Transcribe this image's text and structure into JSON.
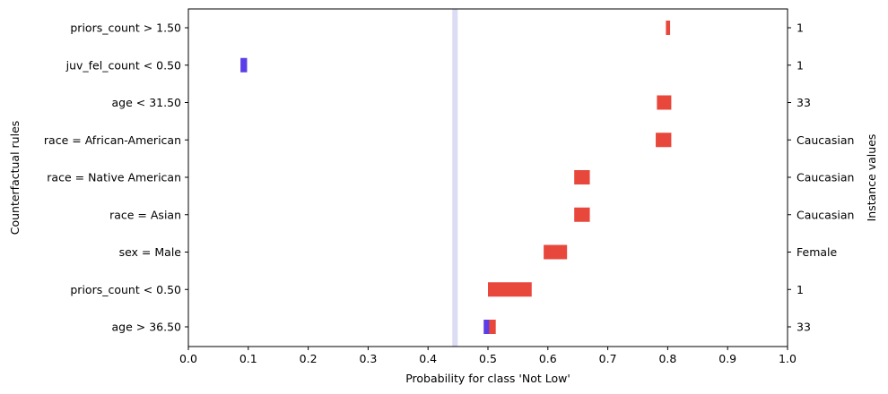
{
  "chart_data": {
    "type": "bar",
    "orientation": "horizontal",
    "xlabel": "Probability for class 'Not Low'",
    "ylabel": "Counterfactual rules",
    "y2label": "Instance values",
    "xlim": [
      0.0,
      1.0
    ],
    "xticks": [
      "0.0",
      "0.1",
      "0.2",
      "0.3",
      "0.4",
      "0.5",
      "0.6",
      "0.7",
      "0.8",
      "0.9",
      "1.0"
    ],
    "baseline": 0.445,
    "grid": false,
    "rules": [
      {
        "label": "priors_count > 1.50",
        "instance": "1",
        "low": 0.797,
        "high": 0.804,
        "color": "#e8473b"
      },
      {
        "label": "juv_fel_count < 0.50",
        "instance": "1",
        "low": 0.087,
        "high": 0.098,
        "color": "#5a3ee8"
      },
      {
        "label": "age < 31.50",
        "instance": "33",
        "low": 0.782,
        "high": 0.806,
        "color": "#e8473b"
      },
      {
        "label": "race = African-American",
        "instance": "Caucasian",
        "low": 0.78,
        "high": 0.806,
        "color": "#e8473b"
      },
      {
        "label": "race = Native American",
        "instance": "Caucasian",
        "low": 0.644,
        "high": 0.67,
        "color": "#e8473b"
      },
      {
        "label": "race = Asian",
        "instance": "Caucasian",
        "low": 0.644,
        "high": 0.67,
        "color": "#e8473b"
      },
      {
        "label": "sex = Male",
        "instance": "Female",
        "low": 0.593,
        "high": 0.632,
        "color": "#e8473b"
      },
      {
        "label": "priors_count < 0.50",
        "instance": "1",
        "low": 0.5,
        "high": 0.573,
        "color": "#e8473b"
      },
      {
        "label": "age > 36.50",
        "instance": "33",
        "low": 0.493,
        "high": 0.513,
        "color": "#e8473b",
        "split": 0.502,
        "split_color": "#5a3ee8"
      }
    ]
  }
}
